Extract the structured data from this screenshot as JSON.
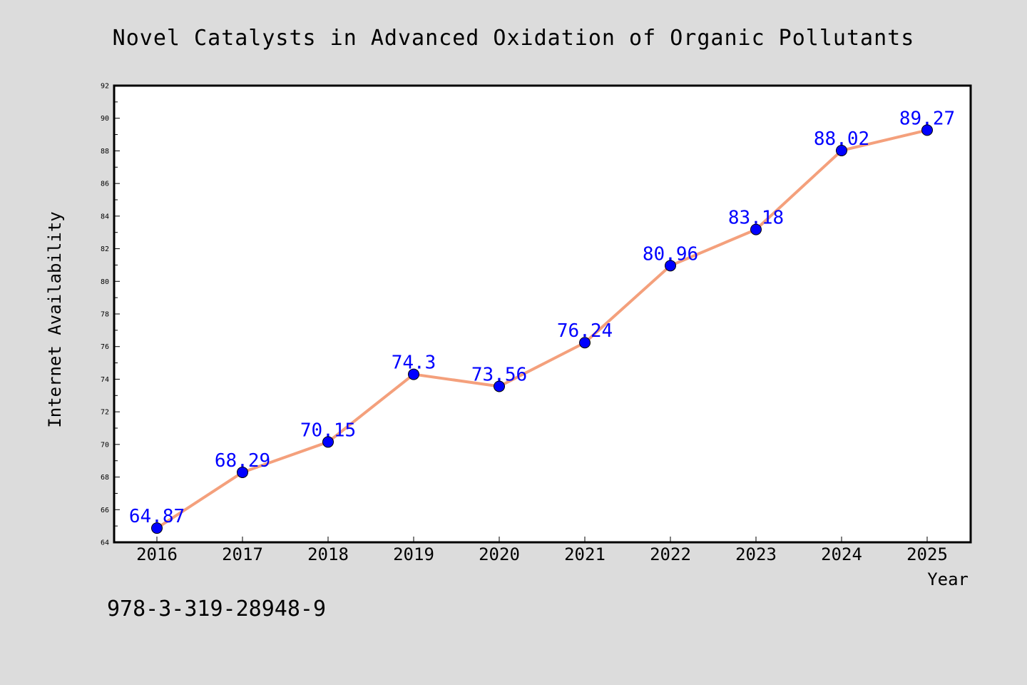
{
  "chart_data": {
    "type": "line",
    "title": "Novel Catalysts in Advanced Oxidation of Organic Pollutants",
    "xlabel": "Year",
    "ylabel": "Internet Availability",
    "categories": [
      "2016",
      "2017",
      "2018",
      "2019",
      "2020",
      "2021",
      "2022",
      "2023",
      "2024",
      "2025"
    ],
    "series": [
      {
        "values": [
          64.87,
          68.29,
          70.15,
          74.3,
          73.56,
          76.24,
          80.96,
          83.18,
          88.02,
          89.27
        ],
        "data_labels": [
          "64.87",
          "68.29",
          "70.15",
          "74.3",
          "73.56",
          "76.24",
          "80.96",
          "83.18",
          "88.02",
          "89.27"
        ],
        "line_color": "#f4a07c",
        "marker_color": "#0000ff"
      }
    ],
    "ylim": [
      64,
      92
    ],
    "yticks": [
      64,
      66,
      68,
      70,
      72,
      74,
      76,
      78,
      80,
      82,
      84,
      86,
      88,
      90,
      92
    ],
    "ytick_labels": [
      "64",
      "66",
      "68",
      "70",
      "72",
      "74",
      "76",
      "78",
      "80",
      "82",
      "84",
      "86",
      "88",
      "90",
      "92"
    ],
    "grid": false,
    "legend": "none"
  },
  "footer": {
    "isbn": "978-3-319-28948-9"
  },
  "colors": {
    "background": "#dcdcdc",
    "plot_background": "#ffffff",
    "line": "#f4a07c",
    "marker": "#0000ff",
    "data_label": "#0000ff"
  }
}
